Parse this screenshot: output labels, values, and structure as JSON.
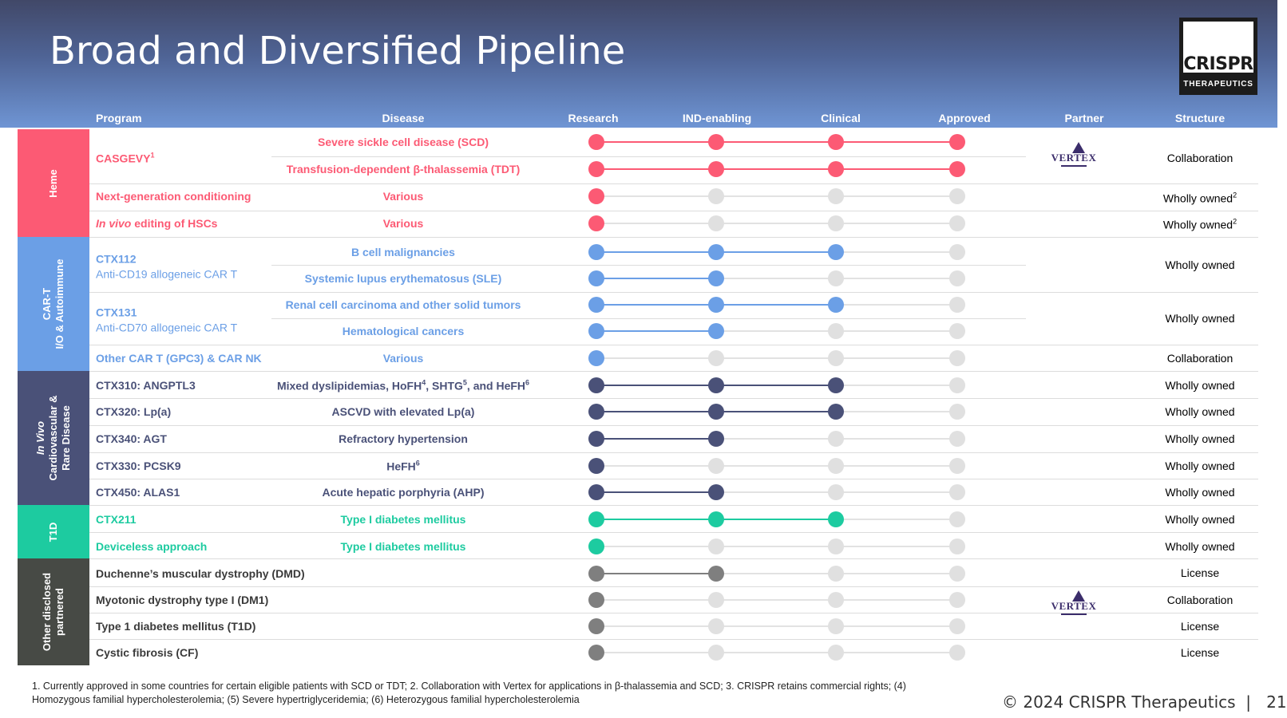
{
  "title": "Broad and Diversified Pipeline",
  "logo": {
    "name": "CRISPR",
    "sub": "THERAPEUTICS"
  },
  "columns": {
    "program": "Program",
    "disease": "Disease",
    "research": "Research",
    "ind": "IND-enabling",
    "clinical": "Clinical",
    "approved": "Approved",
    "partner": "Partner",
    "structure": "Structure"
  },
  "categories": [
    {
      "label": "Heme",
      "color": "#fc5a74"
    },
    {
      "label": "CAR-T\nI/O & Autoimmune",
      "color": "#6b9fe6"
    },
    {
      "label": "In Vivo\nCardiovascular &\nRare Disease",
      "color": "#4a5178"
    },
    {
      "label": "T1D",
      "color": "#1dcba0"
    },
    {
      "label": "Other disclosed\npartnered",
      "color": "#474a45"
    }
  ],
  "colors": {
    "heme": "#fc5a74",
    "cart": "#6b9fe6",
    "invivo": "#4a5178",
    "t1d": "#1dcba0",
    "other": "#7f7f7f",
    "inactive": "#e0e0e0"
  },
  "programs": [
    {
      "name": "CASGEVY",
      "sup": "1",
      "sub": ""
    },
    {
      "name": "Next-generation conditioning",
      "sup": "",
      "sub": ""
    },
    {
      "name_italic": "In vivo",
      "name": " editing of HSCs",
      "sup": "",
      "sub": ""
    },
    {
      "name": "CTX112",
      "sub": "Anti-CD19 allogeneic CAR T"
    },
    {
      "name": "CTX131",
      "sub": "Anti-CD70 allogeneic CAR T"
    },
    {
      "name": "Other CAR T (GPC3) & CAR NK",
      "sub": ""
    },
    {
      "name": "CTX310: ANGPTL3",
      "sub": ""
    },
    {
      "name": "CTX320: Lp(a)",
      "sub": ""
    },
    {
      "name": "CTX340: AGT",
      "sub": ""
    },
    {
      "name": "CTX330: PCSK9",
      "sub": ""
    },
    {
      "name": "CTX450: ALAS1",
      "sub": ""
    },
    {
      "name": "CTX211",
      "sub": ""
    },
    {
      "name": "Deviceless approach",
      "sub": ""
    },
    {
      "name": "Duchenne’s muscular dystrophy (DMD)",
      "sub": ""
    },
    {
      "name": "Myotonic dystrophy type I (DM1)",
      "sub": ""
    },
    {
      "name": "Type 1 diabetes mellitus (T1D)",
      "sub": ""
    },
    {
      "name": "Cystic fibrosis (CF)",
      "sub": ""
    }
  ],
  "rows": [
    {
      "disease": "Severe sickle cell disease (SCD)",
      "stage": 4,
      "group": "heme"
    },
    {
      "disease": "Transfusion-dependent β-thalassemia (TDT)",
      "stage": 4,
      "group": "heme"
    },
    {
      "disease": "Various",
      "stage": 1,
      "group": "heme"
    },
    {
      "disease": "Various",
      "stage": 1,
      "group": "heme"
    },
    {
      "disease": "B cell malignancies",
      "stage": 3,
      "group": "cart"
    },
    {
      "disease": "Systemic lupus erythematosus (SLE)",
      "stage": 2,
      "group": "cart"
    },
    {
      "disease": "Renal cell carcinoma and other solid tumors",
      "stage": 3,
      "group": "cart"
    },
    {
      "disease": "Hematological cancers",
      "stage": 2,
      "group": "cart"
    },
    {
      "disease": "Various",
      "stage": 1,
      "group": "cart"
    },
    {
      "disease": "Mixed dyslipidemias, HoFH",
      "sup1": "4",
      "d2": ", SHTG",
      "sup2": "5",
      "d3": ", and HeFH",
      "sup3": "6",
      "stage": 3,
      "group": "invivo"
    },
    {
      "disease": "ASCVD with elevated Lp(a)",
      "stage": 3,
      "group": "invivo"
    },
    {
      "disease": "Refractory hypertension",
      "stage": 2,
      "group": "invivo"
    },
    {
      "disease": "HeFH",
      "sup1": "6",
      "stage": 1,
      "group": "invivo"
    },
    {
      "disease": "Acute hepatic porphyria (AHP)",
      "stage": 2,
      "group": "invivo"
    },
    {
      "disease": "Type I diabetes mellitus",
      "stage": 3,
      "group": "t1d"
    },
    {
      "disease": "Type I diabetes mellitus",
      "stage": 1,
      "group": "t1d"
    },
    {
      "disease": "",
      "stage": 2,
      "group": "other"
    },
    {
      "disease": "",
      "stage": 1,
      "group": "other"
    },
    {
      "disease": "",
      "stage": 1,
      "group": "other"
    },
    {
      "disease": "",
      "stage": 1,
      "group": "other"
    }
  ],
  "partners": [
    {
      "name": "VERTEX"
    },
    {
      "name": "VERTEX"
    }
  ],
  "structures": [
    {
      "text": "Collaboration",
      "sup": ""
    },
    {
      "text": "Wholly owned",
      "sup": "2"
    },
    {
      "text": "Wholly owned",
      "sup": "2"
    },
    {
      "text": "Wholly owned",
      "sup": ""
    },
    {
      "text": "Wholly owned",
      "sup": ""
    },
    {
      "text": "Collaboration",
      "sup": ""
    },
    {
      "text": "Wholly owned",
      "sup": ""
    },
    {
      "text": "Wholly owned",
      "sup": ""
    },
    {
      "text": "Wholly owned",
      "sup": ""
    },
    {
      "text": "Wholly owned",
      "sup": ""
    },
    {
      "text": "Wholly owned",
      "sup": ""
    },
    {
      "text": "Wholly owned",
      "sup": ""
    },
    {
      "text": "Wholly owned",
      "sup": ""
    },
    {
      "text": "License",
      "sup": ""
    },
    {
      "text": "Collaboration",
      "sup": ""
    },
    {
      "text": "License",
      "sup": ""
    },
    {
      "text": "License",
      "sup": ""
    }
  ],
  "footnote": "1. Currently approved in some countries for certain eligible patients with SCD or TDT; 2. Collaboration with Vertex for applications in β-thalassemia and SCD; 3. CRISPR retains commercial rights; (4) Homozygous familial hypercholesterolemia; (5) Severe hypertriglyceridemia; (6) Heterozygous familial hypercholesterolemia",
  "copyright": "© 2024 CRISPR Therapeutics",
  "page_number": "21"
}
